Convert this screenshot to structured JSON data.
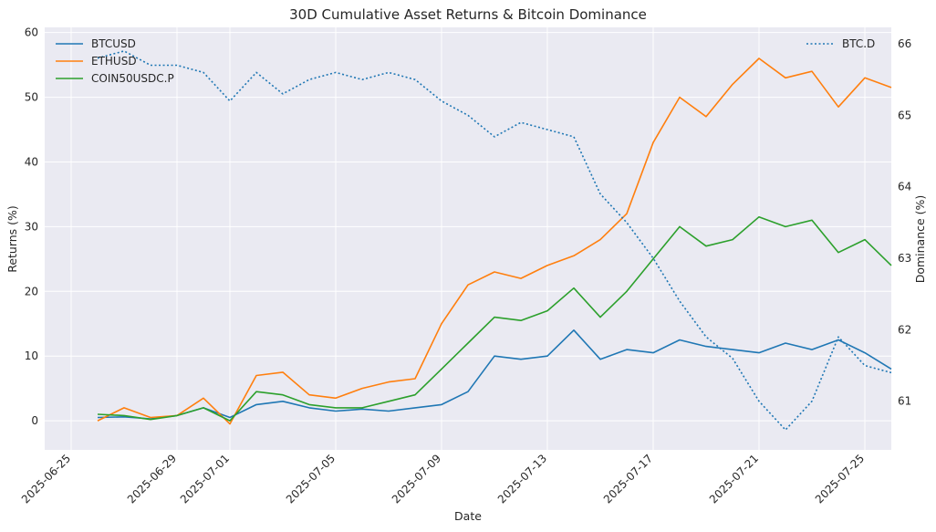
{
  "chart_data": {
    "type": "line",
    "title": "30D Cumulative Asset Returns & Bitcoin Dominance",
    "xlabel": "Date",
    "ylabel": "Returns (%)",
    "y2label": "Dominance (%)",
    "xlim": [
      "2025-06-24",
      "2025-07-26"
    ],
    "ylim": [
      -4.5,
      60.8
    ],
    "y2lim": [
      60.32,
      66.23
    ],
    "x_ticks": [
      "2025-06-25",
      "2025-06-29",
      "2025-07-01",
      "2025-07-05",
      "2025-07-09",
      "2025-07-13",
      "2025-07-17",
      "2025-07-21",
      "2025-07-25"
    ],
    "y_ticks": [
      0,
      10,
      20,
      30,
      40,
      50,
      60
    ],
    "y2_ticks": [
      61,
      62,
      63,
      64,
      65,
      66
    ],
    "grid": true,
    "legend_left": "top-left",
    "legend_right": "top-right",
    "series": [
      {
        "name": "BTCUSD",
        "axis": "left",
        "color": "#1f77b4",
        "style": "solid",
        "x": [
          "2025-06-26",
          "2025-06-27",
          "2025-06-28",
          "2025-06-29",
          "2025-06-30",
          "2025-07-01",
          "2025-07-02",
          "2025-07-03",
          "2025-07-04",
          "2025-07-05",
          "2025-07-06",
          "2025-07-07",
          "2025-07-08",
          "2025-07-09",
          "2025-07-10",
          "2025-07-11",
          "2025-07-12",
          "2025-07-13",
          "2025-07-14",
          "2025-07-15",
          "2025-07-16",
          "2025-07-17",
          "2025-07-18",
          "2025-07-19",
          "2025-07-20",
          "2025-07-21",
          "2025-07-22",
          "2025-07-23",
          "2025-07-24",
          "2025-07-25",
          "2025-07-26"
        ],
        "values": [
          0.5,
          0.6,
          0.3,
          0.8,
          2.0,
          0.5,
          2.5,
          3.0,
          2.0,
          1.5,
          1.8,
          1.5,
          2.0,
          2.5,
          4.5,
          10.0,
          9.5,
          10.0,
          14.0,
          9.5,
          11.0,
          10.5,
          12.5,
          11.5,
          11.0,
          10.5,
          12.0,
          11.0,
          12.5,
          10.5,
          8.0
        ]
      },
      {
        "name": "ETHUSD",
        "axis": "left",
        "color": "#ff7f0e",
        "style": "solid",
        "x": [
          "2025-06-26",
          "2025-06-27",
          "2025-06-28",
          "2025-06-29",
          "2025-06-30",
          "2025-07-01",
          "2025-07-02",
          "2025-07-03",
          "2025-07-04",
          "2025-07-05",
          "2025-07-06",
          "2025-07-07",
          "2025-07-08",
          "2025-07-09",
          "2025-07-10",
          "2025-07-11",
          "2025-07-12",
          "2025-07-13",
          "2025-07-14",
          "2025-07-15",
          "2025-07-16",
          "2025-07-17",
          "2025-07-18",
          "2025-07-19",
          "2025-07-20",
          "2025-07-21",
          "2025-07-22",
          "2025-07-23",
          "2025-07-24",
          "2025-07-25",
          "2025-07-26"
        ],
        "values": [
          0.0,
          2.0,
          0.5,
          0.8,
          3.5,
          -0.5,
          7.0,
          7.5,
          4.0,
          3.5,
          5.0,
          6.0,
          6.5,
          15.0,
          21.0,
          23.0,
          22.0,
          24.0,
          25.5,
          28.0,
          32.0,
          43.0,
          50.0,
          47.0,
          52.0,
          56.0,
          53.0,
          54.0,
          48.5,
          53.0,
          51.5
        ]
      },
      {
        "name": "COIN50USDC.P",
        "axis": "left",
        "color": "#2ca02c",
        "style": "solid",
        "x": [
          "2025-06-26",
          "2025-06-27",
          "2025-06-28",
          "2025-06-29",
          "2025-06-30",
          "2025-07-01",
          "2025-07-02",
          "2025-07-03",
          "2025-07-04",
          "2025-07-05",
          "2025-07-06",
          "2025-07-07",
          "2025-07-08",
          "2025-07-09",
          "2025-07-10",
          "2025-07-11",
          "2025-07-12",
          "2025-07-13",
          "2025-07-14",
          "2025-07-15",
          "2025-07-16",
          "2025-07-17",
          "2025-07-18",
          "2025-07-19",
          "2025-07-20",
          "2025-07-21",
          "2025-07-22",
          "2025-07-23",
          "2025-07-24",
          "2025-07-25",
          "2025-07-26"
        ],
        "values": [
          1.0,
          0.8,
          0.2,
          0.8,
          2.0,
          0.0,
          4.5,
          4.0,
          2.5,
          2.0,
          2.0,
          3.0,
          4.0,
          8.0,
          12.0,
          16.0,
          15.5,
          17.0,
          20.5,
          16.0,
          20.0,
          25.0,
          30.0,
          27.0,
          28.0,
          31.5,
          30.0,
          31.0,
          26.0,
          28.0,
          24.0
        ]
      },
      {
        "name": "BTC.D",
        "axis": "right",
        "color": "#1f77b4",
        "style": "dotted",
        "x": [
          "2025-06-26",
          "2025-06-27",
          "2025-06-28",
          "2025-06-29",
          "2025-06-30",
          "2025-07-01",
          "2025-07-02",
          "2025-07-03",
          "2025-07-04",
          "2025-07-05",
          "2025-07-06",
          "2025-07-07",
          "2025-07-08",
          "2025-07-09",
          "2025-07-10",
          "2025-07-11",
          "2025-07-12",
          "2025-07-13",
          "2025-07-14",
          "2025-07-15",
          "2025-07-16",
          "2025-07-17",
          "2025-07-18",
          "2025-07-19",
          "2025-07-20",
          "2025-07-21",
          "2025-07-22",
          "2025-07-23",
          "2025-07-24",
          "2025-07-25",
          "2025-07-26"
        ],
        "values": [
          65.8,
          65.9,
          65.7,
          65.7,
          65.6,
          65.2,
          65.6,
          65.3,
          65.5,
          65.6,
          65.5,
          65.6,
          65.5,
          65.2,
          65.0,
          64.7,
          64.9,
          64.8,
          64.7,
          63.9,
          63.5,
          63.0,
          62.4,
          61.9,
          61.6,
          61.0,
          60.6,
          61.0,
          61.9,
          61.5,
          61.4
        ]
      }
    ]
  }
}
